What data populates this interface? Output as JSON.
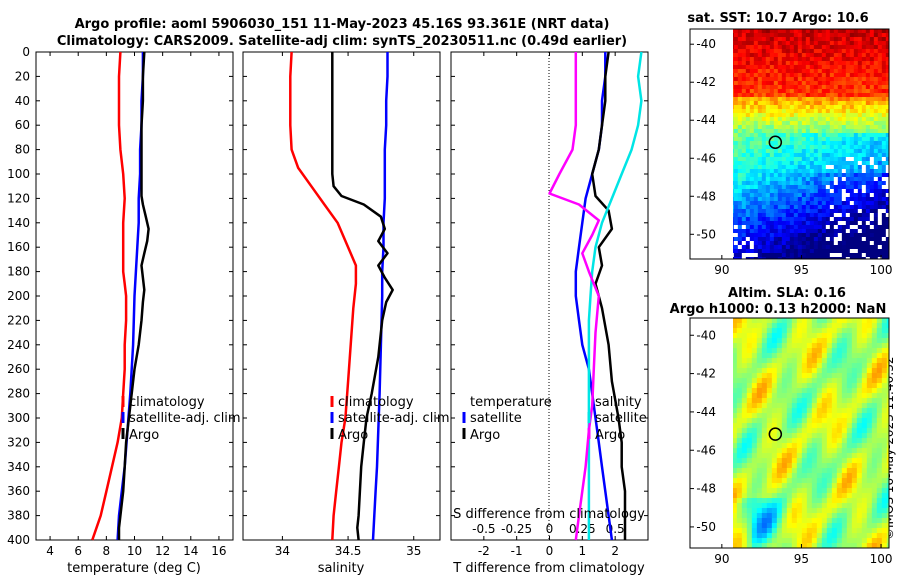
{
  "titles": {
    "line1": "Argo profile: aoml 5906030_151 11-May-2023 45.16S 93.361E (NRT data)",
    "line2": "Climatology: CARS2009. Satellite-adj clim: synTS_20230511.nc (0.49d earlier)",
    "sst": "sat. SST: 10.7 Argo: 10.6",
    "sla1": "Altim. SLA: 0.16",
    "sla2": "Argo h1000: 0.13 h2000: NaN",
    "credit": "©IMOS 16-May-2023 11:40:32"
  },
  "colors": {
    "climatology": "#ff0000",
    "satellite": "#0000ff",
    "argo": "#000000",
    "magenta": "#ff00ff",
    "cyan": "#00e5e5"
  },
  "chart_data": [
    {
      "type": "line",
      "id": "temperature",
      "xlabel": "temperature (deg C)",
      "ylabel": "",
      "xlim": [
        3,
        17
      ],
      "ylim": [
        400,
        0
      ],
      "xticks": [
        4,
        6,
        8,
        10,
        12,
        14,
        16
      ],
      "xtick_labels": [
        "4",
        "6",
        "8",
        "10",
        "12",
        "14",
        "16"
      ],
      "yticks": [
        0,
        20,
        40,
        60,
        80,
        100,
        120,
        140,
        160,
        180,
        200,
        220,
        240,
        260,
        280,
        300,
        320,
        340,
        360,
        380,
        400
      ],
      "ytick_labels": [
        "0",
        "20",
        "40",
        "60",
        "80",
        "100",
        "120",
        "140",
        "160",
        "180",
        "200",
        "220",
        "240",
        "260",
        "280",
        "300",
        "320",
        "340",
        "360",
        "380",
        "400"
      ],
      "legend": [
        "climatology",
        "satellite-adj. clim",
        "Argo"
      ],
      "legend_position": "bottom-right",
      "series": [
        {
          "name": "climatology",
          "color": "red",
          "x": [
            9.0,
            8.9,
            8.9,
            8.9,
            9.0,
            9.2,
            9.3,
            9.2,
            9.2,
            9.2,
            9.3,
            9.4,
            9.4,
            9.3,
            9.3,
            9.2,
            9.1,
            8.8,
            8.4,
            8.0,
            7.6,
            7.3,
            7.0
          ],
          "y": [
            0,
            20,
            40,
            60,
            80,
            100,
            120,
            140,
            160,
            180,
            190,
            200,
            220,
            240,
            260,
            280,
            300,
            320,
            340,
            360,
            380,
            390,
            400
          ]
        },
        {
          "name": "satellite-adj. clim",
          "color": "blue",
          "x": [
            10.6,
            10.6,
            10.5,
            10.5,
            10.4,
            10.4,
            10.3,
            10.3,
            10.2,
            10.1,
            10.0,
            9.9,
            9.7,
            9.5,
            9.3,
            9.1,
            8.9,
            8.8
          ],
          "y": [
            0,
            20,
            40,
            60,
            80,
            100,
            120,
            140,
            160,
            180,
            200,
            240,
            280,
            310,
            340,
            360,
            380,
            400
          ]
        },
        {
          "name": "Argo",
          "color": "black",
          "x": [
            10.7,
            10.6,
            10.6,
            10.5,
            10.5,
            10.5,
            10.5,
            10.6,
            10.8,
            11.0,
            10.9,
            10.7,
            10.5,
            10.6,
            10.7,
            10.6,
            10.5,
            10.3,
            10.0,
            9.8,
            9.6,
            9.4,
            9.3,
            9.2,
            9.1,
            9.0,
            8.9,
            8.9
          ],
          "y": [
            0,
            20,
            40,
            60,
            80,
            100,
            118,
            125,
            135,
            145,
            155,
            165,
            175,
            185,
            195,
            205,
            220,
            240,
            260,
            280,
            300,
            320,
            340,
            360,
            370,
            380,
            390,
            400
          ]
        }
      ]
    },
    {
      "type": "line",
      "id": "salinity",
      "xlabel": "salinity",
      "xlim": [
        33.7,
        35.2
      ],
      "ylim": [
        400,
        0
      ],
      "xticks": [
        34,
        34.5,
        35
      ],
      "xtick_labels": [
        "34",
        "34.5",
        "35"
      ],
      "legend": [
        "climatology",
        "satellite-adj. clim",
        "Argo"
      ],
      "legend_position": "bottom-right",
      "series": [
        {
          "name": "climatology",
          "color": "red",
          "x": [
            34.07,
            34.06,
            34.06,
            34.06,
            34.07,
            34.12,
            34.22,
            34.32,
            34.42,
            34.5,
            34.56,
            34.56,
            34.54,
            34.52,
            34.5,
            34.48,
            34.45,
            34.43,
            34.41,
            34.39,
            34.38
          ],
          "y": [
            0,
            20,
            40,
            60,
            80,
            95,
            110,
            125,
            140,
            160,
            175,
            190,
            210,
            240,
            270,
            300,
            320,
            340,
            360,
            380,
            400
          ]
        },
        {
          "name": "satellite-adj. clim",
          "color": "blue",
          "x": [
            34.8,
            34.8,
            34.79,
            34.79,
            34.78,
            34.78,
            34.78,
            34.77,
            34.77,
            34.76,
            34.76,
            34.75,
            34.74,
            34.73,
            34.72,
            34.71,
            34.7,
            34.69
          ],
          "y": [
            0,
            20,
            40,
            60,
            80,
            100,
            120,
            140,
            160,
            180,
            200,
            240,
            280,
            310,
            340,
            360,
            380,
            400
          ]
        },
        {
          "name": "Argo",
          "color": "black",
          "x": [
            34.38,
            34.38,
            34.38,
            34.38,
            34.38,
            34.38,
            34.39,
            34.45,
            34.62,
            34.75,
            34.78,
            34.73,
            34.8,
            34.73,
            34.78,
            34.84,
            34.79,
            34.76,
            34.73,
            34.68,
            34.64,
            34.62,
            34.6,
            34.59,
            34.58,
            34.57,
            34.58
          ],
          "y": [
            0,
            20,
            40,
            60,
            80,
            100,
            110,
            118,
            125,
            135,
            145,
            155,
            165,
            175,
            185,
            195,
            205,
            220,
            250,
            280,
            300,
            320,
            340,
            360,
            380,
            390,
            400
          ]
        }
      ]
    },
    {
      "type": "line",
      "id": "difference",
      "xlabel": "T difference from climatology",
      "xlabel_top": "S difference from climatology",
      "xlim": [
        -3,
        3
      ],
      "ylim": [
        400,
        0
      ],
      "xticks": [
        -2,
        -1,
        0,
        1,
        2
      ],
      "xtick_labels": [
        "-2",
        "-1",
        "0",
        "1",
        "2"
      ],
      "top_ticks": [
        -0.5,
        -0.25,
        0,
        0.25,
        0.5
      ],
      "top_tick_labels": [
        "-0.5",
        "-0.25",
        "0",
        "0.25",
        "0.5"
      ],
      "legend_left_title": "temperature",
      "legend_left": [
        "satellite",
        "Argo"
      ],
      "legend_right_title": "salinity",
      "legend_right": [
        "satellite",
        "Argo"
      ],
      "series": [
        {
          "name": "T satellite",
          "color": "blue",
          "x": [
            1.7,
            1.7,
            1.6,
            1.6,
            1.5,
            1.3,
            1.1,
            1.0,
            0.9,
            0.8,
            0.8,
            0.9,
            1.0,
            1.2,
            1.3,
            1.4,
            1.5,
            1.6,
            1.7,
            1.8,
            1.9
          ],
          "y": [
            0,
            20,
            40,
            60,
            80,
            100,
            120,
            140,
            160,
            180,
            200,
            220,
            240,
            260,
            280,
            300,
            320,
            340,
            360,
            380,
            400
          ]
        },
        {
          "name": "T Argo",
          "color": "black",
          "x": [
            1.8,
            1.7,
            1.7,
            1.6,
            1.5,
            1.3,
            1.4,
            1.8,
            1.9,
            1.5,
            1.6,
            1.4,
            1.6,
            1.8,
            1.9,
            2.1,
            2.2,
            2.2,
            2.3,
            2.3,
            2.3
          ],
          "y": [
            0,
            20,
            40,
            60,
            80,
            100,
            118,
            130,
            145,
            160,
            175,
            190,
            210,
            240,
            270,
            300,
            320,
            340,
            360,
            380,
            400
          ]
        },
        {
          "name": "S satellite",
          "color": "cyan",
          "x": [
            2.8,
            2.7,
            2.8,
            2.7,
            2.5,
            2.2,
            1.9,
            1.6,
            1.4,
            1.3,
            1.25,
            1.2,
            1.2,
            1.2,
            1.2,
            1.2,
            1.2,
            1.2,
            1.2,
            1.2
          ],
          "y": [
            0,
            20,
            40,
            60,
            80,
            100,
            120,
            140,
            160,
            180,
            200,
            220,
            240,
            260,
            280,
            300,
            320,
            340,
            360,
            400
          ]
        },
        {
          "name": "S Argo",
          "color": "magenta",
          "x": [
            0.8,
            0.8,
            0.8,
            0.8,
            0.7,
            0.3,
            0.0,
            0.9,
            1.5,
            1.3,
            1.0,
            1.2,
            1.5,
            1.4,
            1.35,
            1.3,
            1.2,
            1.1,
            1.0,
            0.9,
            0.8
          ],
          "y": [
            0,
            20,
            40,
            60,
            80,
            100,
            116,
            125,
            138,
            150,
            165,
            180,
            200,
            230,
            260,
            290,
            310,
            340,
            360,
            380,
            400
          ]
        }
      ]
    },
    {
      "type": "heatmap",
      "id": "sst_map",
      "title": "sat. SST: 10.7 Argo: 10.6",
      "xlim": [
        88,
        100.5
      ],
      "ylim": [
        -51.3,
        -39.2
      ],
      "xticks": [
        90,
        95,
        100
      ],
      "xtick_labels": [
        "90",
        "95",
        "100"
      ],
      "yticks": [
        -40,
        -42,
        -44,
        -46,
        -48,
        -50
      ],
      "ytick_labels": [
        "-40",
        "-42",
        "-44",
        "-46",
        "-48",
        "-50"
      ],
      "marker": {
        "lon": 93.36,
        "lat": -45.16
      }
    },
    {
      "type": "heatmap",
      "id": "sla_map",
      "title": "Altim. SLA: 0.16",
      "xlim": [
        88,
        100.5
      ],
      "ylim": [
        -51.1,
        -39.1
      ],
      "xticks": [
        90,
        95,
        100
      ],
      "xtick_labels": [
        "90",
        "95",
        "100"
      ],
      "yticks": [
        -40,
        -42,
        -44,
        -46,
        -48,
        -50
      ],
      "ytick_labels": [
        "-40",
        "-42",
        "-44",
        "-46",
        "-48",
        "-50"
      ],
      "marker": {
        "lon": 93.36,
        "lat": -45.16
      }
    }
  ]
}
